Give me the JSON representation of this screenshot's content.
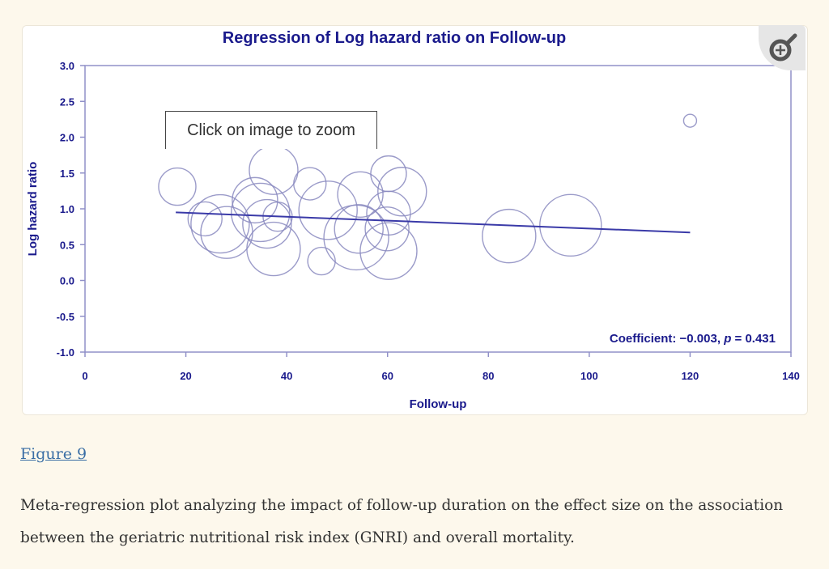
{
  "figure_label": "Figure 9",
  "caption": "Meta-regression plot analyzing the impact of follow-up duration on the effect size on the association between the geriatric nutritional risk index (GNRI) and overall mortality.",
  "tooltip": "Click on image to zoom",
  "zoom_icon": "magnifier-plus-icon",
  "colors": {
    "axis": "#1a1a8c",
    "bubble": "#8a8ac0",
    "line": "#3a3aa8",
    "frame": "#9090c8"
  },
  "chart_data": {
    "type": "scatter",
    "title": "Regression of Log hazard ratio on Follow-up",
    "xlabel": "Follow-up",
    "ylabel": "Log hazard ratio",
    "xlim": [
      0,
      140
    ],
    "ylim": [
      -1.0,
      3.0
    ],
    "xticks": [
      "0",
      "20",
      "40",
      "60",
      "80",
      "100",
      "120",
      "140"
    ],
    "yticks": [
      "3.0",
      "2.5",
      "2.0",
      "1.5",
      "1.0",
      "0.5",
      "0.0",
      "-0.5",
      "-1.0"
    ],
    "annotation": {
      "prefix": "Coefficient: −0.003, ",
      "p_label": "p",
      "suffix": " = 0.431"
    },
    "regression_line": {
      "x": [
        18,
        120
      ],
      "y": [
        0.95,
        0.67
      ]
    },
    "points": [
      {
        "x": 18.3,
        "y": 1.31,
        "weight": 2.3
      },
      {
        "x": 37.4,
        "y": 1.54,
        "weight": 3.0
      },
      {
        "x": 44.6,
        "y": 1.35,
        "weight": 2.0
      },
      {
        "x": 33.7,
        "y": 1.12,
        "weight": 2.8
      },
      {
        "x": 23.8,
        "y": 0.86,
        "weight": 2.1
      },
      {
        "x": 26.8,
        "y": 0.79,
        "weight": 3.6
      },
      {
        "x": 28.1,
        "y": 0.67,
        "weight": 3.2
      },
      {
        "x": 34.8,
        "y": 0.95,
        "weight": 3.6
      },
      {
        "x": 36.1,
        "y": 0.79,
        "weight": 3.0
      },
      {
        "x": 38.2,
        "y": 0.89,
        "weight": 1.8
      },
      {
        "x": 37.4,
        "y": 0.44,
        "weight": 3.3
      },
      {
        "x": 48.2,
        "y": 0.98,
        "weight": 3.6
      },
      {
        "x": 46.9,
        "y": 0.27,
        "weight": 1.7
      },
      {
        "x": 53.8,
        "y": 0.6,
        "weight": 4.0
      },
      {
        "x": 54.6,
        "y": 1.2,
        "weight": 2.8
      },
      {
        "x": 60.2,
        "y": 1.49,
        "weight": 2.2
      },
      {
        "x": 62.9,
        "y": 1.24,
        "weight": 3.0
      },
      {
        "x": 60.2,
        "y": 0.94,
        "weight": 2.7
      },
      {
        "x": 59.9,
        "y": 0.72,
        "weight": 2.7
      },
      {
        "x": 60.2,
        "y": 0.41,
        "weight": 3.5
      },
      {
        "x": 54.3,
        "y": 0.72,
        "weight": 3.0
      },
      {
        "x": 84.1,
        "y": 0.62,
        "weight": 3.3
      },
      {
        "x": 96.3,
        "y": 0.77,
        "weight": 3.8
      },
      {
        "x": 120,
        "y": 2.23,
        "weight": 0.8
      }
    ]
  }
}
